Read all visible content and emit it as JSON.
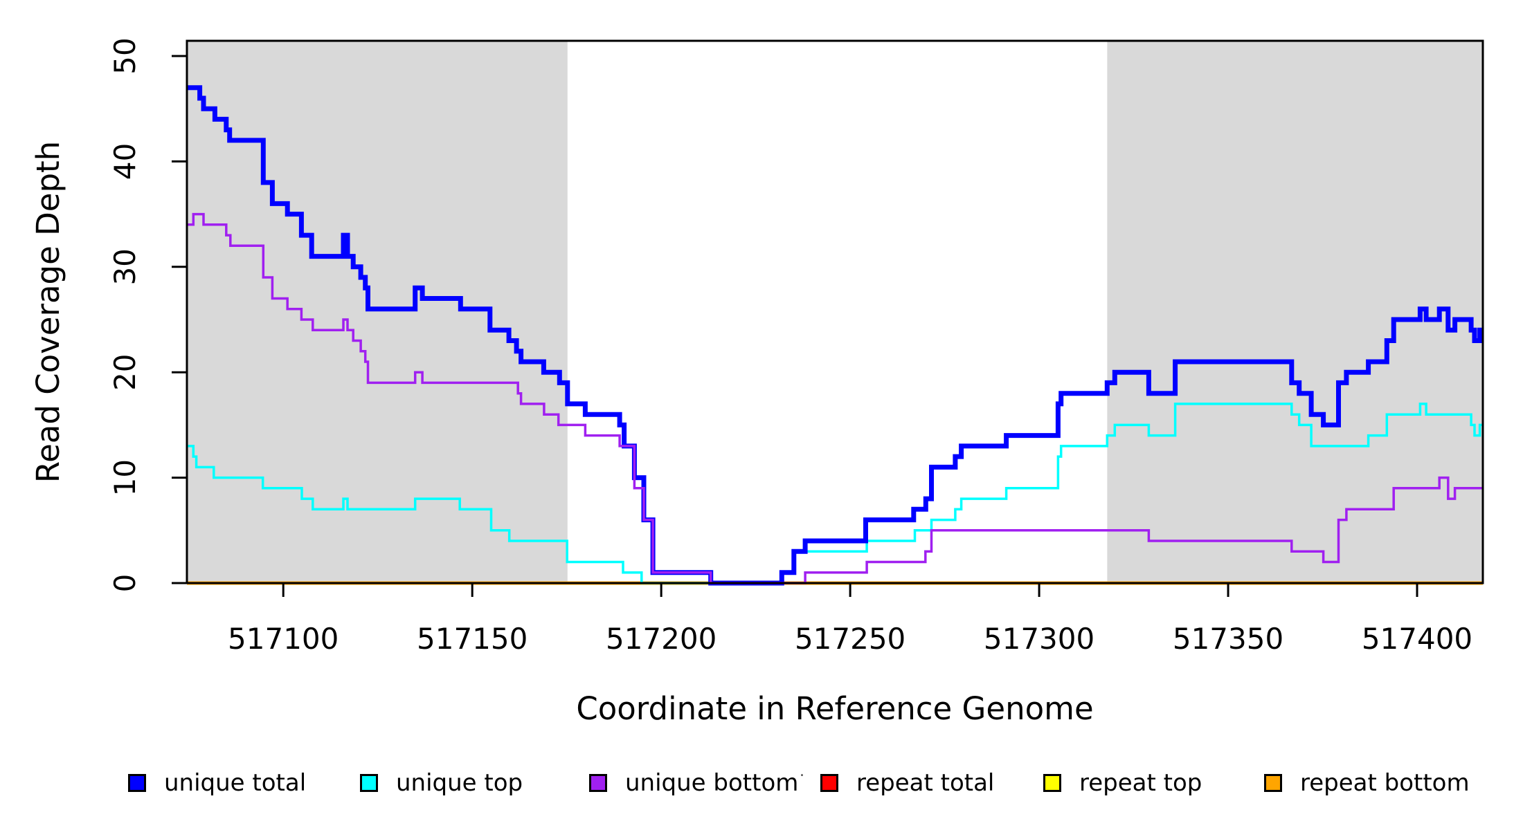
{
  "chart_data": {
    "type": "line",
    "step": true,
    "title": "",
    "xlabel": "Coordinate in Reference Genome",
    "ylabel": "Read Coverage Depth",
    "x_min": 517074.5,
    "x_max": 517417.4,
    "y_min": 0,
    "y_max": 51.4,
    "x_ticks": [
      517100,
      517150,
      517200,
      517250,
      517300,
      517350,
      517400
    ],
    "y_ticks": [
      0,
      10,
      20,
      30,
      40,
      50
    ],
    "grid": false,
    "background_color": "#ffffff",
    "shaded_regions": [
      {
        "name": "left-repeat-region",
        "from": 517074.5,
        "to": 517175.2,
        "color": "#D9D9D9"
      },
      {
        "name": "right-repeat-region",
        "from": 517318.0,
        "to": 517417.4,
        "color": "#D9D9D9"
      }
    ],
    "series": [
      {
        "name": "repeat total",
        "color": "#FF0000",
        "line_width": 3,
        "points": [
          [
            517074.5,
            0
          ],
          [
            517417.4,
            0
          ]
        ]
      },
      {
        "name": "repeat top",
        "color": "#FFFF00",
        "line_width": 3,
        "points": [
          [
            517074.5,
            0
          ],
          [
            517417.4,
            0
          ]
        ]
      },
      {
        "name": "repeat bottom",
        "color": "#FFA500",
        "line_width": 5,
        "points": [
          [
            517074.5,
            0
          ],
          [
            517417.4,
            0
          ]
        ]
      },
      {
        "name": "unique top",
        "color": "#00FFFF",
        "line_width": 3.5,
        "points": [
          [
            517074.5,
            13
          ],
          [
            517076.2,
            12
          ],
          [
            517077,
            11
          ],
          [
            517081.6,
            10
          ],
          [
            517094.6,
            9
          ],
          [
            517104.9,
            8
          ],
          [
            517107.8,
            7
          ],
          [
            517115.9,
            8
          ],
          [
            517117,
            7
          ],
          [
            517134.9,
            8
          ],
          [
            517146.7,
            7
          ],
          [
            517155,
            5
          ],
          [
            517159.8,
            4
          ],
          [
            517175.1,
            2
          ],
          [
            517189.9,
            1
          ],
          [
            517194.8,
            0
          ],
          [
            517231.9,
            1
          ],
          [
            517235.1,
            3
          ],
          [
            517254.4,
            4
          ],
          [
            517267.1,
            5
          ],
          [
            517271.5,
            6
          ],
          [
            517277.8,
            7
          ],
          [
            517279.4,
            8
          ],
          [
            517291.3,
            9
          ],
          [
            517305,
            12
          ],
          [
            517305.8,
            13
          ],
          [
            517318,
            14
          ],
          [
            517320,
            15
          ],
          [
            517329,
            14
          ],
          [
            517336,
            17
          ],
          [
            517366.8,
            16
          ],
          [
            517368.8,
            15
          ],
          [
            517372,
            13
          ],
          [
            517387.1,
            14
          ],
          [
            517392,
            16
          ],
          [
            517400.8,
            17
          ],
          [
            517402.4,
            16
          ],
          [
            517414.3,
            15
          ],
          [
            517415.2,
            14
          ],
          [
            517416.6,
            15
          ],
          [
            517417.4,
            15
          ]
        ]
      },
      {
        "name": "unique total",
        "color": "#0000FF",
        "line_width": 7,
        "points": [
          [
            517074.5,
            47
          ],
          [
            517077.9,
            46
          ],
          [
            517078.9,
            45
          ],
          [
            517081.9,
            44
          ],
          [
            517084.9,
            43
          ],
          [
            517085.8,
            42
          ],
          [
            517094.7,
            38
          ],
          [
            517097.1,
            36
          ],
          [
            517101.1,
            35
          ],
          [
            517104.8,
            33
          ],
          [
            517107.5,
            31
          ],
          [
            517115.9,
            33
          ],
          [
            517117,
            31
          ],
          [
            517118.5,
            30
          ],
          [
            517120.5,
            29
          ],
          [
            517121.7,
            28
          ],
          [
            517122.4,
            26
          ],
          [
            517134.9,
            28
          ],
          [
            517136.8,
            27
          ],
          [
            517146.9,
            26
          ],
          [
            517154.7,
            24
          ],
          [
            517159.7,
            23
          ],
          [
            517161.7,
            22
          ],
          [
            517162.9,
            21
          ],
          [
            517168.9,
            20
          ],
          [
            517173.1,
            19
          ],
          [
            517175.2,
            17
          ],
          [
            517179.9,
            16
          ],
          [
            517189,
            15
          ],
          [
            517190.2,
            13
          ],
          [
            517192.9,
            10
          ],
          [
            517195.4,
            6
          ],
          [
            517197.8,
            1
          ],
          [
            517213.1,
            0
          ],
          [
            517231.9,
            1
          ],
          [
            517235.1,
            3
          ],
          [
            517238.1,
            4
          ],
          [
            517254.1,
            6
          ],
          [
            517266.8,
            7
          ],
          [
            517270,
            8
          ],
          [
            517271.5,
            11
          ],
          [
            517277.8,
            12
          ],
          [
            517279.4,
            13
          ],
          [
            517291.3,
            14
          ],
          [
            517305,
            17
          ],
          [
            517305.8,
            18
          ],
          [
            517318,
            19
          ],
          [
            517320,
            20
          ],
          [
            517329,
            18
          ],
          [
            517336,
            21
          ],
          [
            517366.8,
            19
          ],
          [
            517368.8,
            18
          ],
          [
            517372,
            16
          ],
          [
            517375.2,
            15
          ],
          [
            517379.2,
            19
          ],
          [
            517381.3,
            20
          ],
          [
            517387.1,
            21
          ],
          [
            517392,
            23
          ],
          [
            517393.8,
            25
          ],
          [
            517400.8,
            26
          ],
          [
            517402.4,
            25
          ],
          [
            517405.9,
            26
          ],
          [
            517408.2,
            24
          ],
          [
            517410,
            25
          ],
          [
            517414.3,
            24
          ],
          [
            517415.2,
            23
          ],
          [
            517416.6,
            24
          ],
          [
            517417.4,
            24
          ]
        ]
      },
      {
        "name": "unique bottom",
        "color": "#A020F0",
        "line_width": 3.5,
        "points": [
          [
            517074.5,
            34
          ],
          [
            517076.2,
            35
          ],
          [
            517078.9,
            34
          ],
          [
            517084.9,
            33
          ],
          [
            517086,
            32
          ],
          [
            517094.7,
            29
          ],
          [
            517097.1,
            27
          ],
          [
            517101.1,
            26
          ],
          [
            517104.8,
            25
          ],
          [
            517107.8,
            24
          ],
          [
            517115.9,
            25
          ],
          [
            517117,
            24
          ],
          [
            517118.5,
            23
          ],
          [
            517120.5,
            22
          ],
          [
            517121.7,
            21
          ],
          [
            517122.4,
            19
          ],
          [
            517134.9,
            20
          ],
          [
            517136.8,
            19
          ],
          [
            517162.1,
            18
          ],
          [
            517162.9,
            17
          ],
          [
            517169,
            16
          ],
          [
            517172.8,
            15
          ],
          [
            517179.9,
            14
          ],
          [
            517189,
            13
          ],
          [
            517192.9,
            9
          ],
          [
            517195.4,
            6
          ],
          [
            517197.8,
            1
          ],
          [
            517213.1,
            0
          ],
          [
            517238.1,
            1
          ],
          [
            517254.4,
            2
          ],
          [
            517269.9,
            3
          ],
          [
            517271.5,
            5
          ],
          [
            517329,
            4
          ],
          [
            517366.8,
            3
          ],
          [
            517375.2,
            2
          ],
          [
            517379.2,
            6
          ],
          [
            517381.3,
            7
          ],
          [
            517393.8,
            9
          ],
          [
            517405.9,
            10
          ],
          [
            517408.2,
            8
          ],
          [
            517410,
            9
          ],
          [
            517417.4,
            9
          ]
        ]
      }
    ]
  },
  "legend": {
    "items": [
      {
        "label": "unique total",
        "color": "#0000FF"
      },
      {
        "label": "unique top",
        "color": "#00FFFF"
      },
      {
        "label": "unique bottom",
        "color": "#A020F0"
      },
      {
        "label": "repeat total",
        "color": "#FF0000"
      },
      {
        "label": "repeat top",
        "color": "#FFFF00"
      },
      {
        "label": "repeat bottom",
        "color": "#FFA500"
      }
    ],
    "stray_dot": "."
  }
}
